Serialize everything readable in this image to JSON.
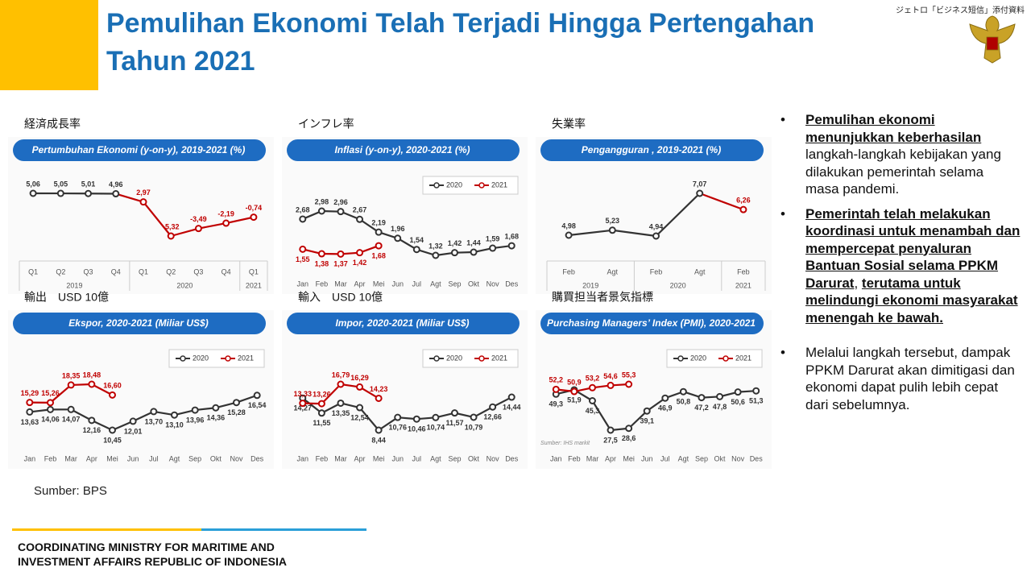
{
  "header": {
    "title": "Pemulihan Ekonomi Telah Terjadi Hingga Pertengahan Tahun 2021",
    "note": "ジェトロ「ビジネス短信」添付資料"
  },
  "chart_data": [
    {
      "type": "line",
      "heading": "経済成長率",
      "title": "Pertumbuhan Ekonomi (y-on-y), 2019-2021 (%)",
      "groups": [
        {
          "label": "2019",
          "categories": [
            "Q1",
            "Q2",
            "Q3",
            "Q4"
          ]
        },
        {
          "label": "2020",
          "categories": [
            "Q1",
            "Q2",
            "Q3",
            "Q4"
          ]
        },
        {
          "label": "2021",
          "categories": [
            "Q1"
          ]
        }
      ],
      "series": [
        {
          "color": "#333333",
          "point_colors": [
            "#333333",
            "#333333",
            "#333333",
            "#333333",
            "#c00000",
            "#c00000",
            "#c00000",
            "#c00000",
            "#c00000"
          ],
          "values": [
            5.06,
            5.05,
            5.01,
            4.96,
            2.97,
            -5.32,
            -3.49,
            -2.19,
            -0.74
          ],
          "value_labels": [
            "5,06",
            "5,05",
            "5,01",
            "4,96",
            "2,97",
            "-5,32",
            "-3,49",
            "-2,19",
            "-0,74"
          ],
          "label_position": "above"
        }
      ]
    },
    {
      "type": "line",
      "heading": "インフレ率",
      "title": "Inflasi (y-on-y), 2020-2021 (%)",
      "categories": [
        "Jan",
        "Feb",
        "Mar",
        "Apr",
        "Mei",
        "Jun",
        "Jul",
        "Agt",
        "Sep",
        "Okt",
        "Nov",
        "Des"
      ],
      "series": [
        {
          "name": "2020",
          "color": "#333333",
          "values": [
            2.68,
            2.98,
            2.96,
            2.67,
            2.19,
            1.96,
            1.54,
            1.32,
            1.42,
            1.44,
            1.59,
            1.68
          ],
          "value_labels": [
            "2,68",
            "2,98",
            "2,96",
            "2,67",
            "2,19",
            "1,96",
            "1,54",
            "1,32",
            "1,42",
            "1,44",
            "1,59",
            "1,68"
          ],
          "label_position": "above"
        },
        {
          "name": "2021",
          "color": "#c00000",
          "values": [
            1.55,
            1.38,
            1.37,
            1.42,
            1.68,
            null,
            null,
            null,
            null,
            null,
            null,
            null
          ],
          "value_labels": [
            "1,55",
            "1,38",
            "1,37",
            "1,42",
            "1,68",
            null,
            null,
            null,
            null,
            null,
            null,
            null
          ],
          "label_position": "below"
        }
      ]
    },
    {
      "type": "line",
      "heading": "失業率",
      "title": "Pengangguran , 2019-2021 (%)",
      "groups": [
        {
          "label": "2019",
          "categories": [
            "Feb",
            "Agt"
          ]
        },
        {
          "label": "2020",
          "categories": [
            "Feb",
            "Agt"
          ]
        },
        {
          "label": "2021",
          "categories": [
            "Feb"
          ]
        }
      ],
      "series": [
        {
          "color": "#333333",
          "point_colors": [
            "#333333",
            "#333333",
            "#333333",
            "#333333",
            "#c00000"
          ],
          "values": [
            4.98,
            5.23,
            4.94,
            7.07,
            6.26
          ],
          "value_labels": [
            "4,98",
            "5,23",
            "4,94",
            "7,07",
            "6,26"
          ],
          "label_position": "above"
        }
      ]
    },
    {
      "type": "line",
      "heading": "輸出　USD 10億",
      "title": "Ekspor, 2020-2021 (Miliar US$)",
      "categories": [
        "Jan",
        "Feb",
        "Mar",
        "Apr",
        "Mei",
        "Jun",
        "Jul",
        "Agt",
        "Sep",
        "Okt",
        "Nov",
        "Des"
      ],
      "series": [
        {
          "name": "2020",
          "color": "#333333",
          "values": [
            13.63,
            14.06,
            14.07,
            12.16,
            10.45,
            12.01,
            13.7,
            13.1,
            13.96,
            14.36,
            15.28,
            16.54
          ],
          "value_labels": [
            "13,63",
            "14,06",
            "14,07",
            "12,16",
            "10,45",
            "12,01",
            "13,70",
            "13,10",
            "13,96",
            "14,36",
            "15,28",
            "16,54"
          ],
          "label_position": "below"
        },
        {
          "name": "2021",
          "color": "#c00000",
          "values": [
            15.29,
            15.26,
            18.35,
            18.48,
            16.6,
            null,
            null,
            null,
            null,
            null,
            null,
            null
          ],
          "value_labels": [
            "15,29",
            "15,26",
            "18,35",
            "18,48",
            "16,60",
            null,
            null,
            null,
            null,
            null,
            null,
            null
          ],
          "label_position": "above"
        }
      ]
    },
    {
      "type": "line",
      "heading": "輸入　USD 10億",
      "title": "Impor, 2020-2021 (Miliar US$)",
      "categories": [
        "Jan",
        "Feb",
        "Mar",
        "Apr",
        "Mei",
        "Jun",
        "Jul",
        "Agt",
        "Sep",
        "Okt",
        "Nov",
        "Des"
      ],
      "series": [
        {
          "name": "2020",
          "color": "#333333",
          "values": [
            14.27,
            11.55,
            13.35,
            12.54,
            8.44,
            10.76,
            10.46,
            10.74,
            11.57,
            10.79,
            12.66,
            14.44
          ],
          "value_labels": [
            "14,27",
            "11,55",
            "13,35",
            "12,54",
            "8,44",
            "10,76",
            "10,46",
            "10,74",
            "11,57",
            "10,79",
            "12,66",
            "14,44"
          ],
          "label_position": "below"
        },
        {
          "name": "2021",
          "color": "#c00000",
          "values": [
            13.33,
            13.26,
            16.79,
            16.29,
            14.23,
            null,
            null,
            null,
            null,
            null,
            null,
            null
          ],
          "value_labels": [
            "13,33",
            "13,26",
            "16,79",
            "16,29",
            "14,23",
            null,
            null,
            null,
            null,
            null,
            null,
            null
          ],
          "label_position": "above"
        }
      ]
    },
    {
      "type": "line",
      "heading": "購買担当者景気指標",
      "title": "Purchasing Managers’ Index (PMI), 2020-2021",
      "source": "Sumber: IHS markit",
      "categories": [
        "Jan",
        "Feb",
        "Mar",
        "Apr",
        "Mei",
        "Jun",
        "Jul",
        "Agt",
        "Sep",
        "Okt",
        "Nov",
        "Des"
      ],
      "series": [
        {
          "name": "2020",
          "color": "#333333",
          "values": [
            49.3,
            51.9,
            45.3,
            27.5,
            28.6,
            39.1,
            46.9,
            50.8,
            47.2,
            47.8,
            50.6,
            51.3
          ],
          "value_labels": [
            "49,3",
            "51,9",
            "45,3",
            "27,5",
            "28,6",
            "39,1",
            "46,9",
            "50,8",
            "47,2",
            "47,8",
            "50,6",
            "51,3"
          ],
          "label_position": "below"
        },
        {
          "name": "2021",
          "color": "#c00000",
          "values": [
            52.2,
            50.9,
            53.2,
            54.6,
            55.3,
            null,
            null,
            null,
            null,
            null,
            null,
            null
          ],
          "value_labels": [
            "52,2",
            "50,9",
            "53,2",
            "54,6",
            "55,3",
            null,
            null,
            null,
            null,
            null,
            null,
            null
          ],
          "label_position": "above"
        }
      ]
    }
  ],
  "bullets": [
    {
      "emphasis": "Pemulihan ekonomi menunjukkan keberhasilan",
      "text": " langkah-langkah kebijakan yang dilakukan pemerintah selama masa pandemi."
    },
    {
      "emphasis": "Pemerintah telah melakukan koordinasi untuk menambah dan mempercepat penyaluran Bantuan Sosial selama PPKM Darurat",
      "text": ", ",
      "emphasis2": "terutama untuk melindungi ekonomi masyarakat menengah ke bawah."
    },
    {
      "text": "Melalui langkah tersebut, dampak PPKM Darurat akan dimitigasi dan ekonomi dapat pulih lebih cepat dari sebelumnya."
    }
  ],
  "source": "Sumber: BPS",
  "footer": "COORDINATING MINISTRY FOR MARITIME AND INVESTMENT AFFAIRS REPUBLIC OF INDONESIA"
}
